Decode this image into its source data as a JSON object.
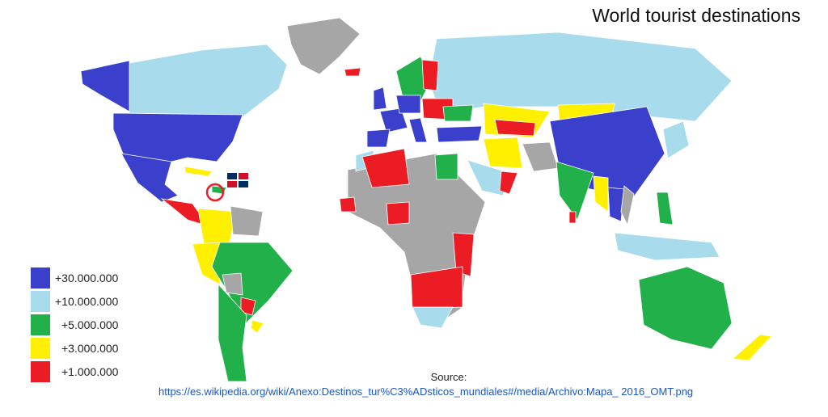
{
  "title": "World tourist destinations",
  "legend": [
    {
      "label": "+30.000.000",
      "color": "#3a40cc"
    },
    {
      "label": "+10.000.000",
      "color": "#a8dcec"
    },
    {
      "label": "+5.000.000",
      "color": "#22b04a"
    },
    {
      "label": "+3.000.000",
      "color": "#fff000"
    },
    {
      "label": "+1.000.000",
      "color": "#ec1c24"
    }
  ],
  "no_data_color": "#a6a6a6",
  "highlight": {
    "icon": "dominican-republic-flag-icon",
    "marker": "red-circle"
  },
  "source": {
    "label": "Source:",
    "url": "https://es.wikipedia.org/wiki/Anexo:Destinos_tur%C3%ADsticos_mundiales#/media/Archivo:Mapa_ 2016_OMT.png"
  }
}
